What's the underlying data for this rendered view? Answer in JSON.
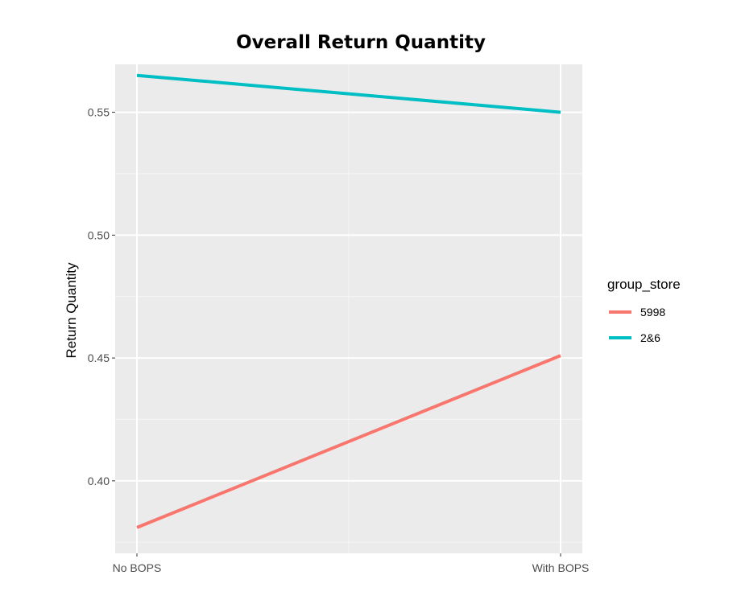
{
  "chart_data": {
    "type": "line",
    "title": "Overall Return Quantity",
    "xlabel": "",
    "ylabel": "Return Quantity",
    "categories": [
      "No BOPS",
      "With BOPS"
    ],
    "yticks": [
      "0.40",
      "0.45",
      "0.50",
      "0.55"
    ],
    "ylim": [
      0.3705,
      0.5695
    ],
    "grid": true,
    "legend": {
      "title": "group_store",
      "placement": "right"
    },
    "series": [
      {
        "name": "5998",
        "values": [
          0.381,
          0.451
        ],
        "color": "#f8766d"
      },
      {
        "name": "2&6",
        "values": [
          0.565,
          0.55
        ],
        "color": "#00bfc4"
      }
    ]
  }
}
